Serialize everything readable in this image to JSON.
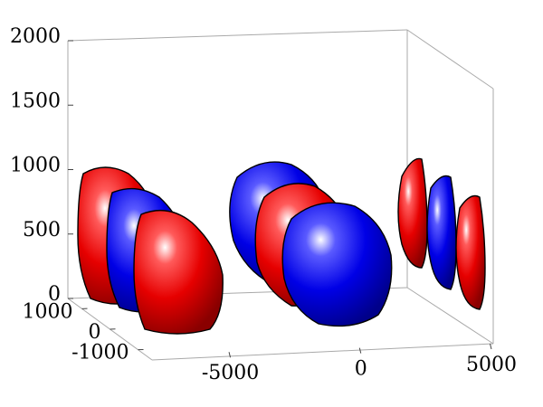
{
  "chart_data": {
    "type": "3d-isosurface",
    "title": "",
    "xlabel": "",
    "ylabel": "",
    "zlabel": "",
    "grid": false,
    "legend": "none",
    "axes": {
      "x": {
        "range": [
          -8000,
          5000
        ],
        "ticks": [
          -5000,
          0,
          5000
        ],
        "tick_labels": [
          "-5000",
          "0",
          "5000"
        ]
      },
      "y": {
        "range": [
          -1500,
          1500
        ],
        "ticks": [
          -1000,
          0,
          1000
        ],
        "tick_labels": [
          "-1000",
          "0",
          "1000"
        ]
      },
      "z": {
        "range": [
          0,
          2000
        ],
        "ticks": [
          0,
          500,
          1000,
          1500,
          2000
        ],
        "tick_labels": [
          "0",
          "500",
          "1000",
          "1500",
          "2000"
        ]
      }
    },
    "colors": {
      "positive": "#ff0000",
      "negative": "#0000ff"
    },
    "lobes": [
      {
        "group": "left",
        "sign": "positive",
        "color": "#ff0000"
      },
      {
        "group": "left",
        "sign": "negative",
        "color": "#0000ff"
      },
      {
        "group": "left",
        "sign": "positive",
        "color": "#ff0000"
      },
      {
        "group": "center",
        "sign": "negative",
        "color": "#0000ff"
      },
      {
        "group": "center",
        "sign": "positive",
        "color": "#ff0000"
      },
      {
        "group": "center",
        "sign": "negative",
        "color": "#0000ff"
      },
      {
        "group": "right",
        "sign": "positive",
        "color": "#ff0000"
      },
      {
        "group": "right",
        "sign": "negative",
        "color": "#0000ff"
      },
      {
        "group": "right",
        "sign": "positive",
        "color": "#ff0000"
      }
    ]
  }
}
